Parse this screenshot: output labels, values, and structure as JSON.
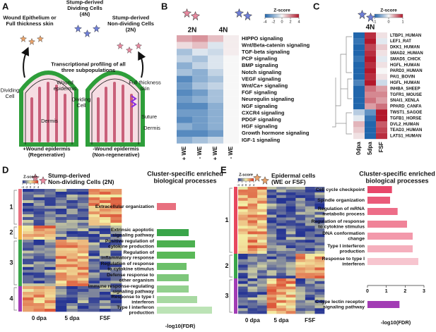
{
  "schematic": {
    "letter": "A",
    "labels": [
      {
        "lines": [
          "Wound Epithelium or",
          "Full thickness skin"
        ]
      },
      {
        "lines": [
          "Stump-derived",
          "Dividing Cells",
          "(4N)"
        ]
      },
      {
        "lines": [
          "Stump-derived",
          "Non-dividing Cells",
          "(2N)"
        ]
      },
      {
        "lines": [
          "Transcriptional profiling of all",
          "three subpopulations"
        ]
      },
      {
        "lines": [
          "Wound",
          "epidermis"
        ]
      },
      {
        "lines": [
          "Dividing",
          "Cell"
        ]
      },
      {
        "lines": [
          "Dermis"
        ]
      },
      {
        "lines": [
          "Full thickness",
          "skin"
        ]
      },
      {
        "lines": [
          "Suture"
        ]
      },
      {
        "lines": [
          "Dividing",
          "Cell"
        ]
      },
      {
        "lines": [
          "Dermis"
        ]
      },
      {
        "lines": [
          "+Wound epidermis",
          "(Regenerative)"
        ]
      },
      {
        "lines": [
          "-Wound epidermis",
          "(Non-regenerative)"
        ]
      }
    ]
  },
  "chart_data": [
    {
      "type": "heatmap",
      "letter": "B",
      "groups": [
        "2N",
        "4N"
      ],
      "colorbar_title": "Z-score",
      "clim": [
        -4,
        4
      ],
      "cticks": [
        -4,
        -2,
        0,
        2,
        4
      ],
      "colors": [
        "#2166ac",
        "#f7f7f7",
        "#b2182b"
      ],
      "rows": [
        "HIPPO signaling",
        "Wnt/Beta-catenin signaling",
        "TGF-beta signaling",
        "PCP signaling",
        "BMP signaling",
        "Notch signaling",
        "VEGF signaling",
        "Wnt/Ca+ signaling",
        "FGF signaling",
        "Neuregulin signaling",
        "NGF signaling",
        "CXCR4 signaling",
        "PDGF signaling",
        "HGF signaling",
        "Growth hormone signaling",
        "IGF-1 signaling"
      ],
      "columns": [
        "+ WE",
        "- WE",
        "+ WE",
        "- WE"
      ],
      "values": [
        [
          1.5,
          1.8,
          1.0,
          0.2
        ],
        [
          0.5,
          1.0,
          -0.5,
          0.2
        ],
        [
          -1.5,
          -0.5,
          -0.8,
          0.2
        ],
        [
          -1.0,
          -1.5,
          -0.5,
          0
        ],
        [
          -2,
          -1,
          -0.5,
          0
        ],
        [
          -1.5,
          -2,
          -1,
          0
        ],
        [
          -3,
          -2,
          -1.5,
          0
        ],
        [
          -2.5,
          -1.5,
          -1,
          0
        ],
        [
          -3,
          -2.5,
          -1.5,
          0
        ],
        [
          -2.5,
          -2,
          -1.5,
          0
        ],
        [
          -3,
          -3,
          -2,
          0
        ],
        [
          -2.5,
          -2.5,
          -2,
          0
        ],
        [
          -3,
          -2.5,
          -2,
          0
        ],
        [
          -2,
          -2.5,
          -2,
          0
        ],
        [
          -3,
          -3,
          -2.5,
          0
        ],
        [
          -2,
          -1.5,
          -1,
          0
        ]
      ]
    },
    {
      "type": "heatmap",
      "letter": "C",
      "groups": [
        "4N"
      ],
      "colorbar_title": "Z-score",
      "clim": [
        -1,
        1
      ],
      "cticks": [
        -1,
        0,
        1
      ],
      "colors": [
        "#2166ac",
        "#f7f7f7",
        "#b2182b"
      ],
      "rows": [
        "LTBP1_HUMAN",
        "LEF1_RAT",
        "DKK1_HUMAN",
        "SMAD2_HUMAN",
        "SMAD5_CHICK",
        "HGFL_HUMAN",
        "PARD3_HUMAN",
        "PAI1_BOVIN",
        "HGFL_HUMAN",
        "INHBA_SHEEP",
        "TGFR1_MOUSE",
        "SNAI1_XENLA",
        "PPARD_CANFA",
        "TWST1_SAGOE",
        "TGFB1_HORSE",
        "DVL2_HUMAN",
        "TEAD3_HUMAN",
        "LATS1_HUMAN"
      ],
      "columns": [
        "0dpa",
        "5dpa",
        "FSF"
      ],
      "values": [
        [
          -1,
          0.9,
          0.1
        ],
        [
          -0.9,
          1,
          -0.1
        ],
        [
          -1,
          0.8,
          0.2
        ],
        [
          -1,
          0.9,
          0.1
        ],
        [
          -0.9,
          1,
          -0.1
        ],
        [
          -1,
          0.9,
          0.1
        ],
        [
          -1,
          1,
          0
        ],
        [
          -1,
          0.9,
          0.1
        ],
        [
          -0.8,
          1,
          -0.2
        ],
        [
          -1,
          0.6,
          0.4
        ],
        [
          -1,
          0.5,
          0.5
        ],
        [
          -1,
          0.6,
          0.4
        ],
        [
          -1,
          0.4,
          0.6
        ],
        [
          -0.3,
          -0.7,
          1
        ],
        [
          -0.1,
          -0.9,
          1
        ],
        [
          0.3,
          -1,
          0.7
        ],
        [
          0.2,
          -1,
          0.8
        ],
        [
          0.1,
          -1,
          0.9
        ]
      ]
    },
    {
      "type": "cluster-heatmap",
      "letter": "D",
      "title_lines": [
        "Stump-derived",
        "Non-dividing Cells (2N)"
      ],
      "colorbar_title": "Z-score",
      "clim": [
        -4,
        4
      ],
      "cticks": [
        -4,
        -2,
        0,
        2,
        4
      ],
      "colors": [
        "#253494",
        "#f4f1a6",
        "#d7301f"
      ],
      "clusters": [
        1,
        2,
        3,
        4
      ],
      "cluster_colors": [
        "#e8707f",
        "#f2b441",
        "#3aa54a",
        "#a23cb4"
      ],
      "columns": [
        "0 dpa",
        "5 dpa",
        "FSF"
      ]
    },
    {
      "type": "bar",
      "orientation": "horizontal",
      "title_lines": [
        "Cluster-specific enriched",
        "biological processes"
      ],
      "categories": [
        [
          "Extracellular organization"
        ],
        [
          "Extrinsic apoptotic",
          "signaling pathway"
        ],
        [
          "Positive regulation of",
          "cytokine production"
        ],
        [
          "Regulation of",
          "inflammatory response"
        ],
        [
          "Regulation of response",
          "to cytokine stimulus"
        ],
        [
          "Defense response to",
          "other organism"
        ],
        [
          "Immune response-regulating",
          "signaling pathway"
        ],
        [
          "Response to type I",
          "interferon"
        ],
        [
          "Type I interferon",
          "production"
        ]
      ],
      "values": [
        0.9,
        1.5,
        1.8,
        1.8,
        1.4,
        1.5,
        1.5,
        1.9,
        2.6
      ],
      "colors": [
        "#e8707f",
        "#3aa54a",
        "#4cb050",
        "#5ab858",
        "#6cc06a",
        "#7ec77b",
        "#93d08e",
        "#a8d9a2",
        "#bce3b6"
      ],
      "xlim": [
        0,
        3
      ],
      "xlabel": "-log10(FDR)"
    },
    {
      "type": "cluster-heatmap",
      "letter": "E",
      "title_lines": [
        "Epidermal cells",
        "(WE or FSF)"
      ],
      "colorbar_title": "Z-score",
      "clim": [
        -4,
        4
      ],
      "cticks": [
        -4,
        -2,
        0,
        2,
        4
      ],
      "colors": [
        "#253494",
        "#f4f1a6",
        "#d7301f"
      ],
      "clusters": [
        1,
        2,
        3
      ],
      "cluster_colors": [
        "#e7475e",
        "#3aa54a",
        "#a23cb4"
      ],
      "columns": [
        "0 dpa",
        "5 dpa",
        "FSF"
      ]
    },
    {
      "type": "bar",
      "orientation": "horizontal",
      "title_lines": [
        "Cluster-specific enriched",
        "biological processes"
      ],
      "categories": [
        [
          "Cell cycle checkpoint"
        ],
        [
          "Spindle organization"
        ],
        [
          "Regulation of mRNA",
          "metabolic process"
        ],
        [
          "Regulation of response",
          "to cytokine stimulus"
        ],
        [
          "DNA conformation",
          "change"
        ],
        [
          "Type I interferon",
          "production"
        ],
        [
          "Response to type I",
          "interferon"
        ],
        [
          "C-type lectin receptor",
          "signaling pathway"
        ]
      ],
      "values": [
        1.3,
        1.2,
        1.6,
        2.1,
        2.4,
        2.4,
        2.7,
        1.7
      ],
      "colors": [
        "#e8476a",
        "#ea5a79",
        "#ed6d88",
        "#f08398",
        "#f399ab",
        "#f5afbd",
        "#f7c5cf",
        "#a23cb4"
      ],
      "xlim": [
        0,
        3
      ],
      "xticks": [
        0,
        1,
        2,
        3
      ],
      "xlabel": "-log10(FDR)"
    }
  ]
}
